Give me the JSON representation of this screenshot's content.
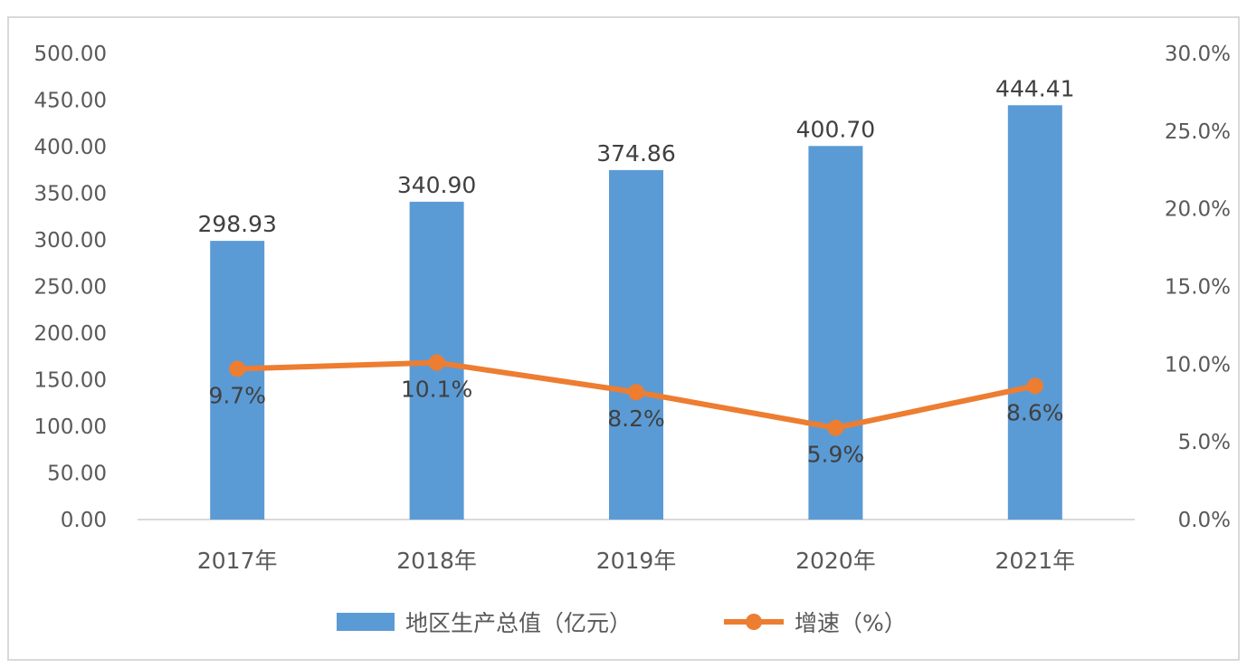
{
  "chart_data": {
    "type": "bar",
    "title": "",
    "categories": [
      "2017年",
      "2018年",
      "2019年",
      "2020年",
      "2021年"
    ],
    "series": [
      {
        "name": "地区生产总值（亿元）",
        "type": "bar",
        "axis": "left",
        "values": [
          298.93,
          340.9,
          374.86,
          400.7,
          444.41
        ],
        "labels": [
          "298.93",
          "340.90",
          "374.86",
          "400.70",
          "444.41"
        ],
        "color": "#5b9bd5"
      },
      {
        "name": "增速（%）",
        "type": "line",
        "axis": "right",
        "values": [
          9.7,
          10.1,
          8.2,
          5.9,
          8.6
        ],
        "labels": [
          "9.7%",
          "10.1%",
          "8.2%",
          "5.9%",
          "8.6%"
        ],
        "color": "#ed7d31"
      }
    ],
    "y_left": {
      "range": [
        0,
        500
      ],
      "ticks": [
        "0.00",
        "50.00",
        "100.00",
        "150.00",
        "200.00",
        "250.00",
        "300.00",
        "350.00",
        "400.00",
        "450.00",
        "500.00"
      ]
    },
    "y_right": {
      "range": [
        0,
        30
      ],
      "ticks": [
        "0.0%",
        "5.0%",
        "10.0%",
        "15.0%",
        "20.0%",
        "25.0%",
        "30.0%"
      ]
    },
    "grid": false,
    "legend": "bottom-center"
  }
}
